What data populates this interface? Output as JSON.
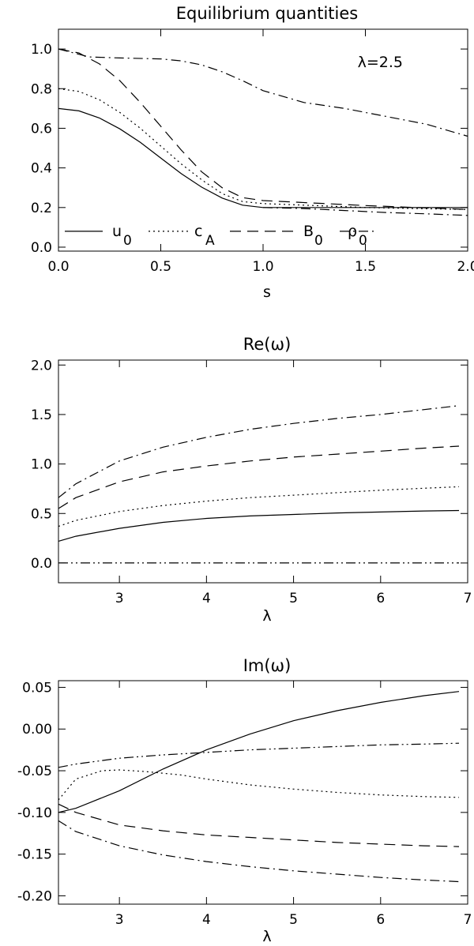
{
  "chart_data": [
    {
      "type": "line",
      "title": "Equilibrium quantities",
      "xlabel": "s",
      "ylabel": "",
      "xlim": [
        0.0,
        2.0
      ],
      "ylim": [
        -0.02,
        1.1
      ],
      "xticks": [
        "0.0",
        "0.5",
        "1.0",
        "1.5",
        "2.0"
      ],
      "yticks": [
        "0.0",
        "0.2",
        "0.4",
        "0.6",
        "0.8",
        "1.0"
      ],
      "annotation": "λ=2.5",
      "legend": {
        "placement": "bottom",
        "entries": [
          {
            "label": "u",
            "sub": "0",
            "dash": "solid"
          },
          {
            "label": "c",
            "sub": "A",
            "dash": "dotted"
          },
          {
            "label": "B",
            "sub": "0",
            "dash": "dashed"
          },
          {
            "label": "ρ",
            "sub": "0",
            "dash": "dashdot"
          }
        ]
      },
      "series": [
        {
          "dash": "solid",
          "x": [
            0,
            0.1,
            0.2,
            0.3,
            0.4,
            0.5,
            0.6,
            0.7,
            0.8,
            0.9,
            1.0,
            1.5,
            2.0
          ],
          "values": [
            0.7,
            0.688,
            0.652,
            0.597,
            0.529,
            0.45,
            0.371,
            0.303,
            0.248,
            0.212,
            0.2,
            0.2,
            0.2
          ]
        },
        {
          "dash": "dotted",
          "x": [
            0,
            0.1,
            0.2,
            0.3,
            0.4,
            0.5,
            0.6,
            0.7,
            0.8,
            0.9,
            1.0,
            1.5,
            2.0
          ],
          "values": [
            0.8,
            0.786,
            0.744,
            0.68,
            0.6,
            0.51,
            0.42,
            0.34,
            0.27,
            0.23,
            0.22,
            0.2,
            0.19
          ]
        },
        {
          "dash": "dashed",
          "x": [
            0,
            0.1,
            0.2,
            0.3,
            0.4,
            0.5,
            0.6,
            0.7,
            0.8,
            0.9,
            1.0,
            1.5,
            2.0
          ],
          "values": [
            1.0,
            0.98,
            0.925,
            0.84,
            0.73,
            0.61,
            0.49,
            0.38,
            0.3,
            0.25,
            0.235,
            0.21,
            0.19
          ]
        },
        {
          "dash": "dashdot",
          "x": [
            0,
            0.15,
            0.3,
            0.5,
            0.6,
            0.7,
            0.8,
            0.9,
            1.0,
            1.2,
            1.4,
            1.6,
            1.8,
            2.0
          ],
          "values": [
            1.0,
            0.96,
            0.955,
            0.95,
            0.94,
            0.92,
            0.885,
            0.84,
            0.79,
            0.73,
            0.7,
            0.66,
            0.62,
            0.56
          ]
        },
        {
          "dash": "dashdot",
          "x": [
            1.0,
            1.2,
            1.4,
            1.6,
            1.8,
            2.0
          ],
          "values": [
            0.2,
            0.195,
            0.185,
            0.175,
            0.168,
            0.16
          ]
        }
      ]
    },
    {
      "type": "line",
      "title": "Re(ω)",
      "xlabel": "λ",
      "ylabel": "",
      "xlim": [
        2.3,
        7.0
      ],
      "ylim": [
        -0.2,
        2.05
      ],
      "xticks": [
        "3",
        "4",
        "5",
        "6",
        "7"
      ],
      "yticks": [
        "0.0",
        "0.5",
        "1.0",
        "1.5",
        "2.0"
      ],
      "series": [
        {
          "dash": "solid",
          "x": [
            2.3,
            2.5,
            3.0,
            3.5,
            4.0,
            4.5,
            5.0,
            5.5,
            6.0,
            6.5,
            6.9
          ],
          "values": [
            0.22,
            0.27,
            0.35,
            0.41,
            0.45,
            0.475,
            0.49,
            0.505,
            0.515,
            0.525,
            0.53
          ]
        },
        {
          "dash": "dotted",
          "x": [
            2.3,
            2.5,
            3.0,
            3.5,
            4.0,
            4.5,
            5.0,
            5.5,
            6.0,
            6.5,
            6.9
          ],
          "values": [
            0.37,
            0.43,
            0.52,
            0.58,
            0.625,
            0.66,
            0.685,
            0.71,
            0.735,
            0.755,
            0.77
          ]
        },
        {
          "dash": "dashed",
          "x": [
            2.3,
            2.5,
            3.0,
            3.5,
            4.0,
            4.5,
            5.0,
            5.5,
            6.0,
            6.5,
            6.9
          ],
          "values": [
            0.55,
            0.66,
            0.82,
            0.92,
            0.98,
            1.03,
            1.07,
            1.1,
            1.13,
            1.16,
            1.18
          ]
        },
        {
          "dash": "dashdot",
          "x": [
            2.3,
            2.5,
            3.0,
            3.5,
            4.0,
            4.5,
            5.0,
            5.5,
            6.0,
            6.5,
            6.9
          ],
          "values": [
            0.66,
            0.8,
            1.03,
            1.17,
            1.27,
            1.35,
            1.41,
            1.46,
            1.5,
            1.55,
            1.59
          ]
        },
        {
          "dash": "dashdotdot",
          "x": [
            2.3,
            6.9
          ],
          "values": [
            0.0,
            0.0
          ]
        }
      ]
    },
    {
      "type": "line",
      "title": "Im(ω)",
      "xlabel": "λ",
      "ylabel": "",
      "xlim": [
        2.3,
        7.0
      ],
      "ylim": [
        -0.21,
        0.058
      ],
      "xticks": [
        "3",
        "4",
        "5",
        "6",
        "7"
      ],
      "yticks": [
        "0.05",
        "0.00",
        "-0.05",
        "-0.10",
        "-0.15",
        "-0.20"
      ],
      "series": [
        {
          "dash": "solid",
          "x": [
            2.3,
            2.5,
            3.0,
            3.5,
            4.0,
            4.5,
            5.0,
            5.5,
            6.0,
            6.5,
            6.9
          ],
          "values": [
            -0.1,
            -0.095,
            -0.074,
            -0.048,
            -0.025,
            -0.006,
            0.01,
            0.022,
            0.032,
            0.04,
            0.045
          ]
        },
        {
          "dash": "dotted",
          "x": [
            2.3,
            2.5,
            2.8,
            3.0,
            3.3,
            3.7,
            4.0,
            4.5,
            5.0,
            5.5,
            6.0,
            6.5,
            6.9
          ],
          "values": [
            -0.085,
            -0.06,
            -0.05,
            -0.049,
            -0.051,
            -0.055,
            -0.06,
            -0.067,
            -0.072,
            -0.076,
            -0.079,
            -0.081,
            -0.082
          ]
        },
        {
          "dash": "dashed",
          "x": [
            2.3,
            2.5,
            3.0,
            3.5,
            4.0,
            4.5,
            5.0,
            5.5,
            6.0,
            6.5,
            6.9
          ],
          "values": [
            -0.09,
            -0.1,
            -0.115,
            -0.122,
            -0.127,
            -0.13,
            -0.133,
            -0.136,
            -0.138,
            -0.14,
            -0.141
          ]
        },
        {
          "dash": "dashdot",
          "x": [
            2.3,
            2.5,
            3.0,
            3.5,
            4.0,
            4.5,
            5.0,
            5.5,
            6.0,
            6.5,
            6.9
          ],
          "values": [
            -0.11,
            -0.123,
            -0.14,
            -0.151,
            -0.159,
            -0.165,
            -0.17,
            -0.174,
            -0.178,
            -0.181,
            -0.183
          ]
        },
        {
          "dash": "dashdotdot",
          "x": [
            2.3,
            2.5,
            3.0,
            3.5,
            4.0,
            4.5,
            5.0,
            5.5,
            6.0,
            6.5,
            6.9
          ],
          "values": [
            -0.046,
            -0.042,
            -0.035,
            -0.031,
            -0.028,
            -0.025,
            -0.023,
            -0.021,
            -0.019,
            -0.018,
            -0.017
          ]
        }
      ]
    }
  ]
}
